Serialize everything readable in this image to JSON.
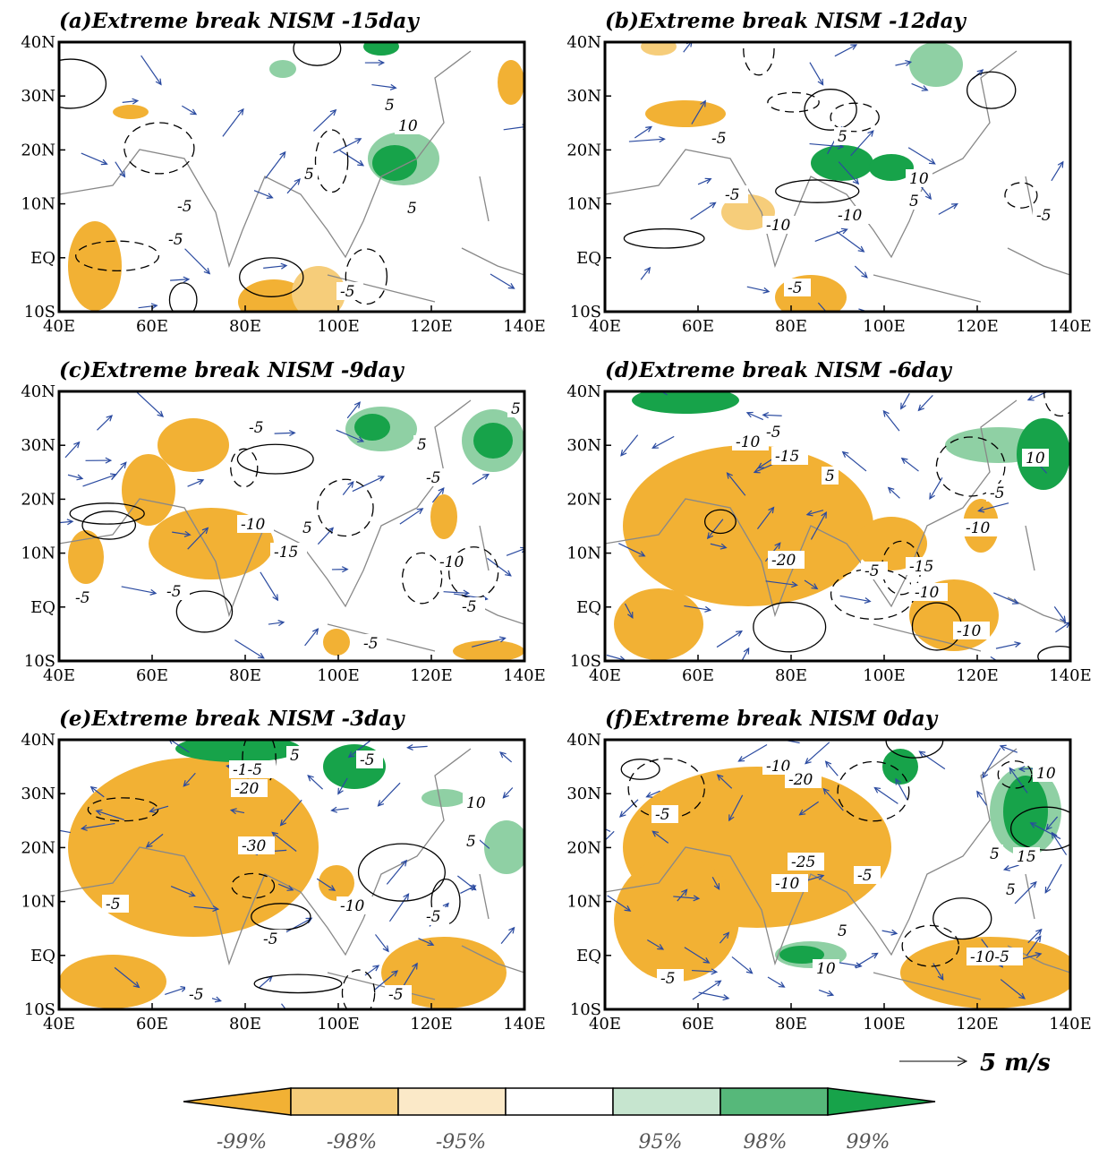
{
  "axes": {
    "lat_labels": [
      "40N",
      "30N",
      "20N",
      "10N",
      "EQ",
      "10S"
    ],
    "lon_labels": [
      "40E",
      "60E",
      "80E",
      "100E",
      "120E",
      "140E"
    ]
  },
  "panels": [
    {
      "title": "(a)Extreme break NISM -15day",
      "contour_labels": [
        "5",
        "10",
        "5",
        "-5",
        "-5",
        "5",
        "-5"
      ]
    },
    {
      "title": "(b)Extreme break NISM -12day",
      "contour_labels": [
        "-5",
        "5",
        "-5",
        "10",
        "5",
        "-10",
        "-10",
        "-5",
        "-5"
      ]
    },
    {
      "title": "(c)Extreme break NISM -9day",
      "contour_labels": [
        "-5",
        "5",
        "-5",
        "-10",
        "5",
        "-15",
        "-10",
        "-5",
        "-5",
        "-5",
        "-5",
        "5"
      ]
    },
    {
      "title": "(d)Extreme break NISM -6day",
      "contour_labels": [
        "-10",
        "-5",
        "-15",
        "5",
        "10",
        "-5",
        "-10",
        "-20",
        "-5",
        "-15",
        "-10",
        "-10"
      ]
    },
    {
      "title": "(e)Extreme break NISM -3day",
      "contour_labels": [
        "-1-5",
        "5",
        "-5",
        "-20",
        "10",
        "5",
        "-30",
        "-5",
        "-10",
        "-5",
        "-5",
        "-5",
        "-5"
      ]
    },
    {
      "title": "(f)Extreme break NISM 0day",
      "contour_labels": [
        "-10",
        "-20",
        "10",
        "-5",
        "-25",
        "-10",
        "-5",
        "5",
        "15",
        "5",
        "5",
        "10",
        "-10-5",
        "-5"
      ]
    }
  ],
  "reference_vector": "5 m/s",
  "colorbar": {
    "labels": [
      "-99%",
      "-98%",
      "-95%",
      "95%",
      "98%",
      "99%"
    ]
  }
}
